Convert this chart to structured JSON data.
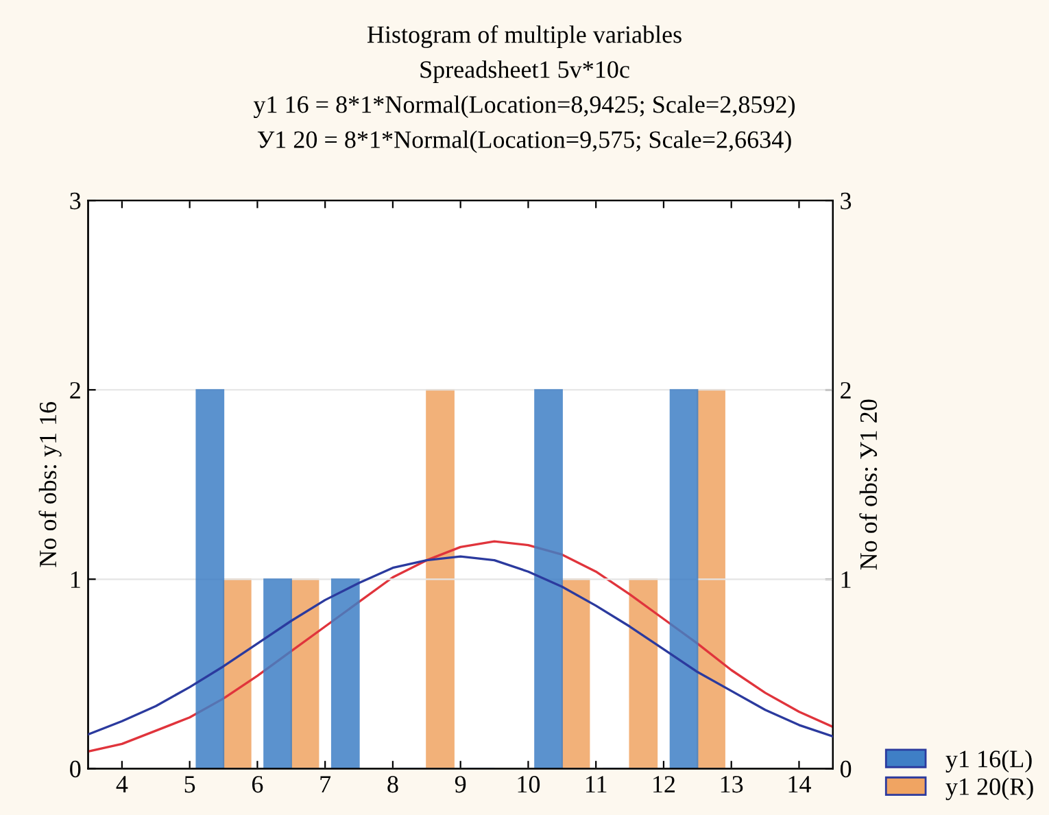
{
  "chart_data": {
    "type": "histogram",
    "title": "Histogram of multiple variables",
    "subtitle": "Spreadsheet1 5v*10c",
    "annotations": [
      "y1 16 = 8*1*Normal(Location=8,9425; Scale=2,8592)",
      "У1 20 = 8*1*Normal(Location=9,575; Scale=2,6634)"
    ],
    "ylabel": "No of obs: y1 16",
    "y2label": "No of obs: У1 20",
    "bins": [
      5,
      6,
      7,
      8,
      9,
      10,
      11,
      12,
      13
    ],
    "series": [
      {
        "name": "y1 16(L)",
        "color": "#3f7fc6",
        "values": [
          2,
          1,
          1,
          0,
          0,
          2,
          0,
          2
        ]
      },
      {
        "name": "y1 20(R)",
        "color": "#f0a462",
        "axis": "y2",
        "values": [
          1,
          1,
          0,
          2,
          0,
          1,
          1,
          2
        ]
      },
      {
        "type": "line",
        "color": "#2b3a9e",
        "x": [
          3.5,
          4,
          4.5,
          5,
          5.5,
          6,
          6.5,
          7,
          7.5,
          8,
          8.5,
          9,
          9.5,
          10,
          10.5,
          11,
          11.5,
          12,
          12.5,
          13,
          13.5,
          14,
          14.5
        ],
        "values": [
          0.18,
          0.25,
          0.33,
          0.43,
          0.54,
          0.66,
          0.78,
          0.89,
          0.98,
          1.06,
          1.1,
          1.12,
          1.1,
          1.04,
          0.96,
          0.86,
          0.75,
          0.63,
          0.51,
          0.41,
          0.31,
          0.23,
          0.17
        ]
      },
      {
        "type": "line",
        "color": "#e0343c",
        "axis": "y2",
        "x": [
          3.5,
          4,
          4.5,
          5,
          5.5,
          6,
          6.5,
          7,
          7.5,
          8,
          8.5,
          9,
          9.5,
          10,
          10.5,
          11,
          11.5,
          12,
          12.5,
          13,
          13.5,
          14,
          14.5
        ],
        "values": [
          0.09,
          0.13,
          0.2,
          0.27,
          0.37,
          0.49,
          0.62,
          0.75,
          0.88,
          1.01,
          1.1,
          1.17,
          1.2,
          1.18,
          1.13,
          1.04,
          0.92,
          0.79,
          0.66,
          0.52,
          0.4,
          0.3,
          0.22
        ]
      }
    ],
    "xlim": [
      3.5,
      14.5
    ],
    "xticks": [
      4,
      5,
      6,
      7,
      8,
      9,
      10,
      11,
      12,
      13,
      14
    ],
    "ylim": [
      0,
      3
    ],
    "yticks": [
      0,
      1,
      2,
      3
    ],
    "y2lim": [
      0,
      3
    ],
    "y2ticks": [
      0,
      1,
      2,
      3
    ],
    "grid": "y",
    "legend": "bottom right"
  }
}
